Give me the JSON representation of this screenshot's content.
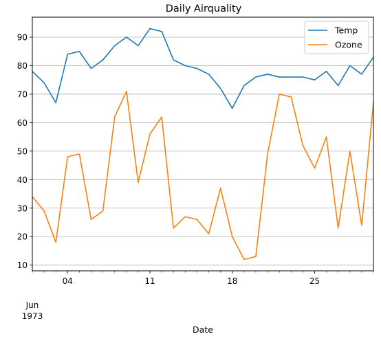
{
  "chart_data": {
    "type": "line",
    "title": "Daily Airquality",
    "xlabel": "Date",
    "ylabel": "",
    "x": [
      "1973-06-01",
      "1973-06-02",
      "1973-06-03",
      "1973-06-04",
      "1973-06-05",
      "1973-06-06",
      "1973-06-07",
      "1973-06-08",
      "1973-06-09",
      "1973-06-10",
      "1973-06-11",
      "1973-06-12",
      "1973-06-13",
      "1973-06-14",
      "1973-06-15",
      "1973-06-16",
      "1973-06-17",
      "1973-06-18",
      "1973-06-19",
      "1973-06-20",
      "1973-06-21",
      "1973-06-22",
      "1973-06-23",
      "1973-06-24",
      "1973-06-25",
      "1973-06-26",
      "1973-06-27",
      "1973-06-28",
      "1973-06-29",
      "1973-06-30"
    ],
    "xlim": [
      "1973-06-01",
      "1973-06-30"
    ],
    "ylim": [
      8,
      97
    ],
    "x_ticks": [
      {
        "date": "1973-06-04",
        "label": "04"
      },
      {
        "date": "1973-06-11",
        "label": "11"
      },
      {
        "date": "1973-06-18",
        "label": "18"
      },
      {
        "date": "1973-06-25",
        "label": "25"
      }
    ],
    "x_tick_sublabel": {
      "date": "1973-06-01",
      "line1": "Jun",
      "line2": "1973"
    },
    "y_ticks": [
      10,
      20,
      30,
      40,
      50,
      60,
      70,
      80,
      90
    ],
    "grid": "horizontal",
    "legend": "top-right",
    "series": [
      {
        "name": "Temp",
        "color": "#1f77b4",
        "values": [
          78,
          74,
          67,
          84,
          85,
          79,
          82,
          87,
          90,
          87,
          93,
          92,
          82,
          80,
          79,
          77,
          72,
          65,
          73,
          76,
          77,
          76,
          76,
          76,
          75,
          78,
          73,
          80,
          77,
          83
        ]
      },
      {
        "name": "Ozone",
        "color": "#ff7f0e",
        "values": [
          34,
          29,
          18,
          48,
          49,
          26,
          29,
          62,
          71,
          39,
          56,
          62,
          23,
          27,
          26,
          21,
          37,
          20,
          12,
          13,
          49,
          70,
          69,
          52,
          44,
          55,
          23,
          50,
          24,
          67
        ]
      }
    ]
  }
}
